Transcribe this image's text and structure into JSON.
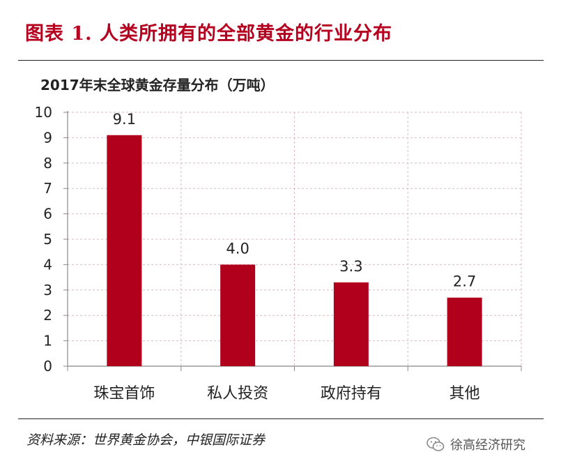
{
  "figure_title": "图表 1. 人类所拥有的全部黄金的行业分布",
  "source_text": "资料来源：世界黄金协会，中银国际证券",
  "watermark": {
    "text": "徐高经济研究",
    "icon": "wechat-icon"
  },
  "colors": {
    "bar": "#b0001c",
    "title": "#b4001e",
    "grid": "#e2b6c0",
    "axis": "#888888"
  },
  "chart_data": {
    "type": "bar",
    "title": "2017年末全球黄金存量分布（万吨）",
    "categories": [
      "珠宝首饰",
      "私人投资",
      "政府持有",
      "其他"
    ],
    "values": [
      9.1,
      4.0,
      3.3,
      2.7
    ],
    "value_labels": [
      "9.1",
      "4.0",
      "3.3",
      "2.7"
    ],
    "yticks": [
      "0",
      "1",
      "2",
      "3",
      "4",
      "5",
      "6",
      "7",
      "8",
      "9",
      "10"
    ],
    "ylim": [
      0,
      10
    ],
    "xlabel": "",
    "ylabel": "",
    "grid": "dashed-both"
  }
}
